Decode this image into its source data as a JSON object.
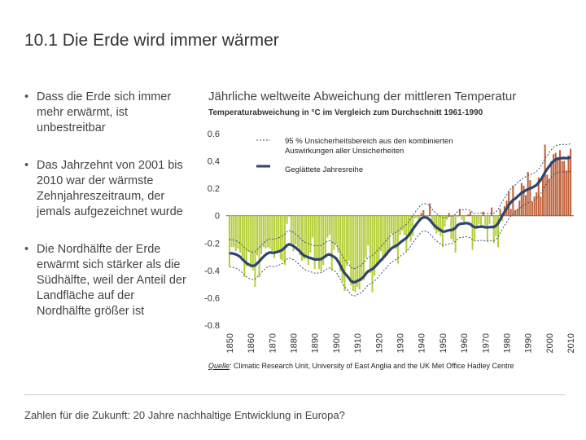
{
  "slide": {
    "number": "10.1",
    "title": "Die Erde wird immer wärmer",
    "bullets": [
      "Dass die Erde sich immer mehr erwärmt, ist unbestreitbar",
      "Das Jahrzehnt von 2001 bis 2010 war der wärmste Zehnjahreszeitraum, der jemals aufgezeichnet wurde",
      "Die Nordhälfte der Erde erwärmt sich stärker als die Südhälfte, weil der Anteil der Landfläche auf der Nordhälfte größer ist"
    ],
    "footer": "Zahlen für die Zukunft: 20 Jahre nachhaltige Entwicklung in Europa?"
  },
  "chart_data": {
    "type": "bar",
    "title": "Jährliche weltweite Abweichung der mittleren Temperatur",
    "subtitle": "Temperaturabweichung in °C im Vergleich zum Durchschnitt 1961-1990",
    "ylim": [
      -0.8,
      0.6
    ],
    "yticks": [
      "0.6",
      "0.4",
      "0.2",
      "0",
      "-0.2",
      "-0.4",
      "-0.6",
      "-0.8"
    ],
    "xticks": [
      "1850",
      "1860",
      "1870",
      "1880",
      "1890",
      "1900",
      "1910",
      "1920",
      "1930",
      "1940",
      "1950",
      "1960",
      "1970",
      "1980",
      "1990",
      "2000",
      "2010"
    ],
    "legend": [
      {
        "label": "95 % Unsicherheitsbereich aus den kombinierten Auswirkungen aller Unsicherheiten",
        "style": "dotted"
      },
      {
        "label": "Geglättete Jahresreihe",
        "style": "thick-line"
      }
    ],
    "colors": {
      "negative": "#b5cf3c",
      "positive": "#c0623a",
      "line": "#2b4470",
      "band": "#3a4f7a"
    },
    "x": [
      1850,
      1851,
      1852,
      1853,
      1854,
      1855,
      1856,
      1857,
      1858,
      1859,
      1860,
      1861,
      1862,
      1863,
      1864,
      1865,
      1866,
      1867,
      1868,
      1869,
      1870,
      1871,
      1872,
      1873,
      1874,
      1875,
      1876,
      1877,
      1878,
      1879,
      1880,
      1881,
      1882,
      1883,
      1884,
      1885,
      1886,
      1887,
      1888,
      1889,
      1890,
      1891,
      1892,
      1893,
      1894,
      1895,
      1896,
      1897,
      1898,
      1899,
      1900,
      1901,
      1902,
      1903,
      1904,
      1905,
      1906,
      1907,
      1908,
      1909,
      1910,
      1911,
      1912,
      1913,
      1914,
      1915,
      1916,
      1917,
      1918,
      1919,
      1920,
      1921,
      1922,
      1923,
      1924,
      1925,
      1926,
      1927,
      1928,
      1929,
      1930,
      1931,
      1932,
      1933,
      1934,
      1935,
      1936,
      1937,
      1938,
      1939,
      1940,
      1941,
      1942,
      1943,
      1944,
      1945,
      1946,
      1947,
      1948,
      1949,
      1950,
      1951,
      1952,
      1953,
      1954,
      1955,
      1956,
      1957,
      1958,
      1959,
      1960,
      1961,
      1962,
      1963,
      1964,
      1965,
      1966,
      1967,
      1968,
      1969,
      1970,
      1971,
      1972,
      1973,
      1974,
      1975,
      1976,
      1977,
      1978,
      1979,
      1980,
      1981,
      1982,
      1983,
      1984,
      1985,
      1986,
      1987,
      1988,
      1989,
      1990,
      1991,
      1992,
      1993,
      1994,
      1995,
      1996,
      1997,
      1998,
      1999,
      2000,
      2001,
      2002,
      2003,
      2004,
      2005,
      2006,
      2007,
      2008,
      2009,
      2010
    ],
    "values": [
      -0.37,
      -0.23,
      -0.23,
      -0.26,
      -0.24,
      -0.27,
      -0.3,
      -0.45,
      -0.37,
      -0.26,
      -0.38,
      -0.4,
      -0.52,
      -0.29,
      -0.45,
      -0.28,
      -0.23,
      -0.24,
      -0.23,
      -0.24,
      -0.27,
      -0.31,
      -0.26,
      -0.26,
      -0.32,
      -0.33,
      -0.36,
      -0.06,
      0.0,
      -0.21,
      -0.26,
      -0.21,
      -0.23,
      -0.29,
      -0.33,
      -0.32,
      -0.31,
      -0.36,
      -0.27,
      -0.16,
      -0.39,
      -0.31,
      -0.39,
      -0.41,
      -0.36,
      -0.31,
      -0.16,
      -0.14,
      -0.4,
      -0.25,
      -0.21,
      -0.27,
      -0.41,
      -0.48,
      -0.55,
      -0.37,
      -0.33,
      -0.51,
      -0.55,
      -0.56,
      -0.52,
      -0.54,
      -0.48,
      -0.47,
      -0.31,
      -0.22,
      -0.42,
      -0.56,
      -0.44,
      -0.35,
      -0.33,
      -0.26,
      -0.33,
      -0.31,
      -0.29,
      -0.25,
      -0.13,
      -0.23,
      -0.24,
      -0.35,
      -0.14,
      -0.11,
      -0.14,
      -0.26,
      -0.13,
      -0.19,
      -0.15,
      -0.02,
      -0.02,
      -0.03,
      0.02,
      0.04,
      -0.01,
      -0.01,
      0.09,
      -0.05,
      -0.1,
      -0.13,
      -0.12,
      -0.15,
      -0.23,
      -0.08,
      -0.03,
      0.02,
      -0.17,
      -0.19,
      -0.27,
      -0.01,
      0.05,
      -0.03,
      -0.06,
      0.0,
      0.01,
      0.03,
      -0.25,
      -0.18,
      -0.09,
      -0.06,
      -0.08,
      0.03,
      -0.07,
      -0.19,
      -0.06,
      0.06,
      -0.2,
      -0.15,
      -0.23,
      0.05,
      -0.04,
      0.07,
      0.11,
      0.18,
      0.05,
      0.22,
      0.04,
      0.05,
      0.11,
      0.24,
      0.22,
      0.15,
      0.32,
      0.26,
      0.1,
      0.14,
      0.17,
      0.28,
      0.14,
      0.29,
      0.52,
      0.3,
      0.27,
      0.4,
      0.45,
      0.46,
      0.43,
      0.48,
      0.4,
      0.4,
      0.33,
      0.44,
      0.49
    ]
  },
  "source": {
    "label": "Quelle",
    "text": ": Climatic Research Unit, University of East Anglia and the UK Met Office Hadley Centre"
  }
}
